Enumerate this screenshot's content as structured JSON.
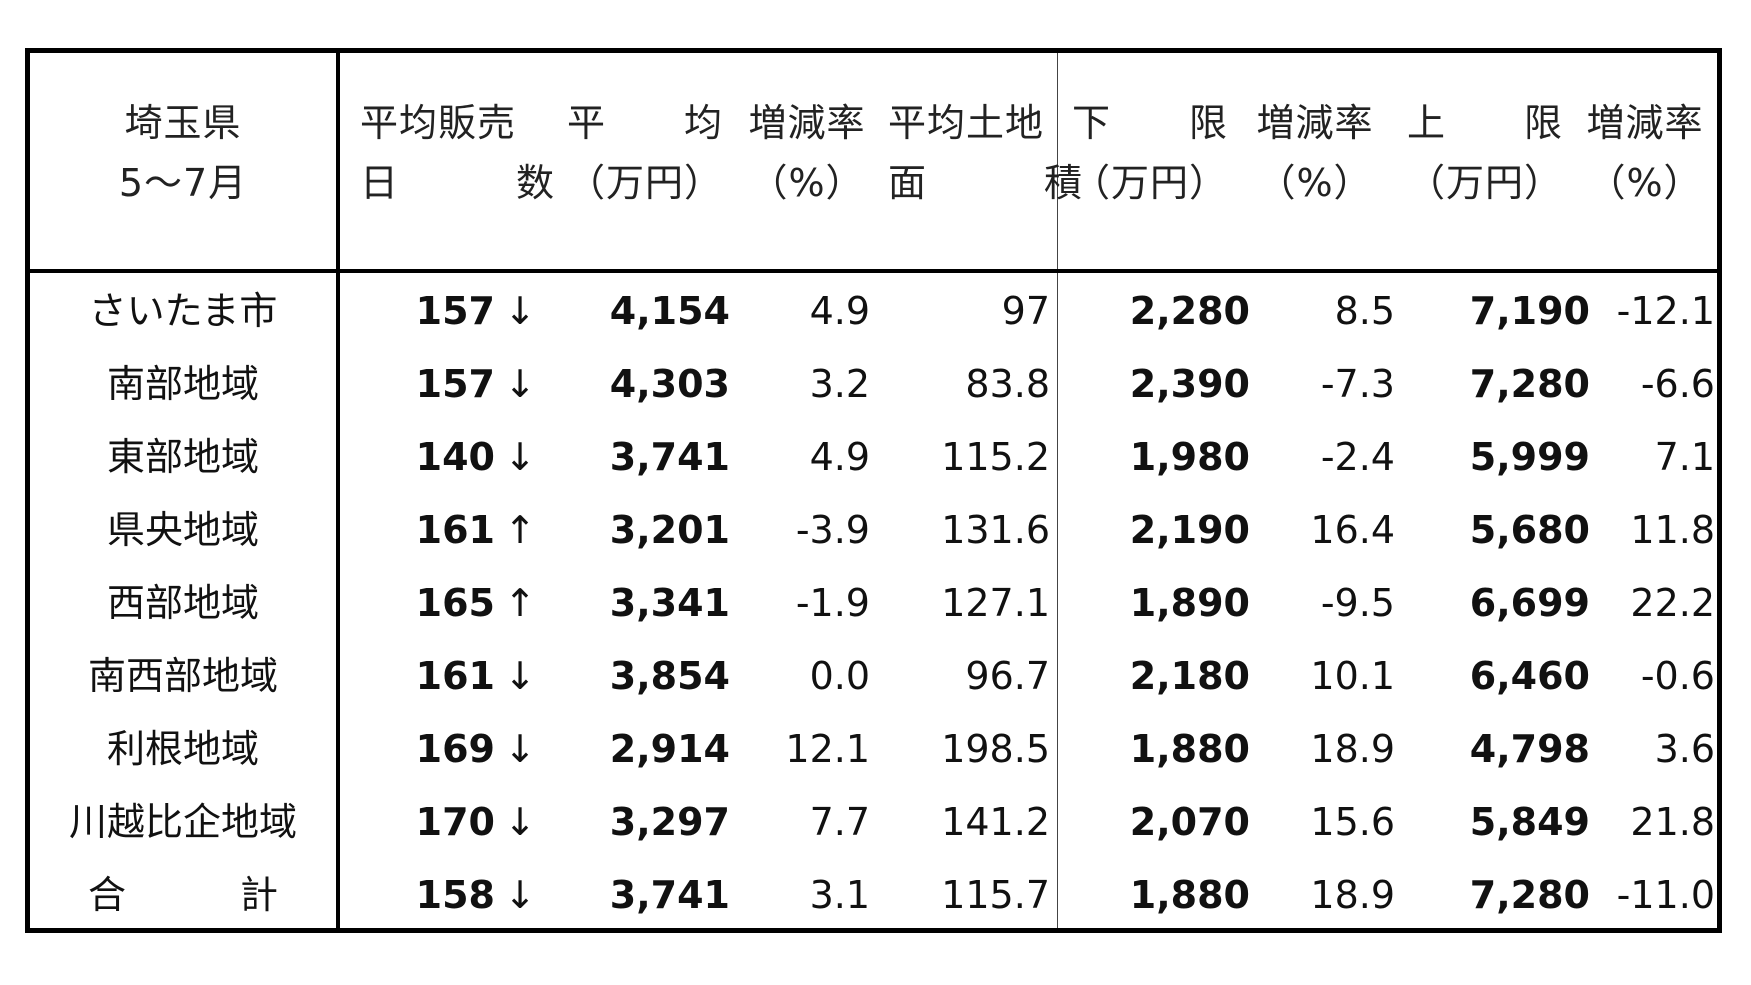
{
  "header": {
    "region": [
      "埼玉県",
      "5〜7月"
    ],
    "days": [
      "平均販売",
      "日　　　数"
    ],
    "avg": [
      "平　　均",
      "（万円）"
    ],
    "rate1": [
      "増減率",
      "（%）"
    ],
    "land": [
      "平均土地",
      "面　　　積"
    ],
    "lower": [
      "下　　限",
      "（万円）"
    ],
    "rate2": [
      "増減率",
      "（%）"
    ],
    "upper": [
      "上　　限",
      "（万円）"
    ],
    "rate3": [
      "増減率",
      "（%）"
    ]
  },
  "rows": [
    {
      "region": "さいたま市",
      "days": "157",
      "arrow": "↓",
      "avg": "4,154",
      "rate1": "4.9",
      "land": "97",
      "lower": "2,280",
      "rate2": "8.5",
      "upper": "7,190",
      "rate3": "-12.1"
    },
    {
      "region": "南部地域",
      "days": "157",
      "arrow": "↓",
      "avg": "4,303",
      "rate1": "3.2",
      "land": "83.8",
      "lower": "2,390",
      "rate2": "-7.3",
      "upper": "7,280",
      "rate3": "-6.6"
    },
    {
      "region": "東部地域",
      "days": "140",
      "arrow": "↓",
      "avg": "3,741",
      "rate1": "4.9",
      "land": "115.2",
      "lower": "1,980",
      "rate2": "-2.4",
      "upper": "5,999",
      "rate3": "7.1"
    },
    {
      "region": "県央地域",
      "days": "161",
      "arrow": "↑",
      "avg": "3,201",
      "rate1": "-3.9",
      "land": "131.6",
      "lower": "2,190",
      "rate2": "16.4",
      "upper": "5,680",
      "rate3": "11.8"
    },
    {
      "region": "西部地域",
      "days": "165",
      "arrow": "↑",
      "avg": "3,341",
      "rate1": "-1.9",
      "land": "127.1",
      "lower": "1,890",
      "rate2": "-9.5",
      "upper": "6,699",
      "rate3": "22.2"
    },
    {
      "region": "南西部地域",
      "days": "161",
      "arrow": "↓",
      "avg": "3,854",
      "rate1": "0.0",
      "land": "96.7",
      "lower": "2,180",
      "rate2": "10.1",
      "upper": "6,460",
      "rate3": "-0.6"
    },
    {
      "region": "利根地域",
      "days": "169",
      "arrow": "↓",
      "avg": "2,914",
      "rate1": "12.1",
      "land": "198.5",
      "lower": "1,880",
      "rate2": "18.9",
      "upper": "4,798",
      "rate3": "3.6"
    },
    {
      "region": "川越比企地域",
      "days": "170",
      "arrow": "↓",
      "avg": "3,297",
      "rate1": "7.7",
      "land": "141.2",
      "lower": "2,070",
      "rate2": "15.6",
      "upper": "5,849",
      "rate3": "21.8"
    },
    {
      "region": "合　　　計",
      "days": "158",
      "arrow": "↓",
      "avg": "3,741",
      "rate1": "3.1",
      "land": "115.7",
      "lower": "1,880",
      "rate2": "18.9",
      "upper": "7,280",
      "rate3": "-11.0"
    }
  ]
}
